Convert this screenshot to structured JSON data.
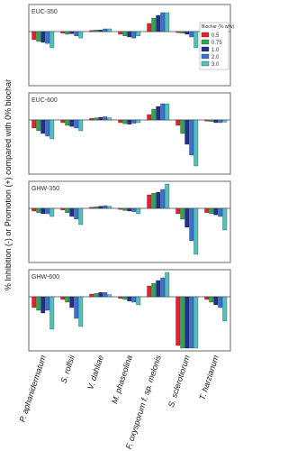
{
  "chart_data": [
    {
      "type": "bar",
      "title": "EUC-350",
      "y_label": "% Inhibition (-) or Promotion (+) compared with 0% biochar",
      "legend_title": "Biochar (% w/w)",
      "legend": "upper right",
      "ylim": [
        -100,
        50
      ],
      "series": [
        {
          "name": "0.5",
          "color": "#e8202a",
          "values": [
            -15,
            -3,
            2,
            -5,
            15,
            -2,
            1
          ]
        },
        {
          "name": "0.75",
          "color": "#2fa84f",
          "values": [
            -18,
            -5,
            3,
            -8,
            25,
            -3,
            -1
          ]
        },
        {
          "name": "1.0",
          "color": "#1f2f8f",
          "values": [
            -20,
            -4,
            3,
            -10,
            30,
            -5,
            -2
          ]
        },
        {
          "name": "2.0",
          "color": "#3a6fd8",
          "values": [
            -22,
            -8,
            5,
            -12,
            35,
            -10,
            -1
          ]
        },
        {
          "name": "3.0",
          "color": "#4fc3b5",
          "values": [
            -30,
            -12,
            5,
            -8,
            35,
            -30,
            -2
          ]
        }
      ]
    },
    {
      "type": "bar",
      "title": "EUC-600",
      "ylim": [
        -100,
        50
      ],
      "series": [
        {
          "color": "#e8202a",
          "values": [
            -15,
            -5,
            3,
            -5,
            10,
            -10,
            -2
          ]
        },
        {
          "color": "#2fa84f",
          "values": [
            -20,
            -10,
            4,
            -7,
            20,
            -25,
            -3
          ]
        },
        {
          "color": "#1f2f8f",
          "values": [
            -25,
            -12,
            5,
            -8,
            25,
            -45,
            -5
          ]
        },
        {
          "color": "#3a6fd8",
          "values": [
            -30,
            -15,
            6,
            -6,
            30,
            -65,
            -5
          ]
        },
        {
          "color": "#4fc3b5",
          "values": [
            -35,
            -20,
            4,
            -5,
            30,
            -85,
            -4
          ]
        }
      ]
    },
    {
      "type": "bar",
      "title": "GHW-350",
      "ylim": [
        -100,
        50
      ],
      "series": [
        {
          "color": "#e8202a",
          "values": [
            -5,
            -3,
            2,
            -2,
            25,
            -10,
            -8
          ]
        },
        {
          "color": "#2fa84f",
          "values": [
            -8,
            -8,
            3,
            -4,
            28,
            -20,
            -10
          ]
        },
        {
          "color": "#1f2f8f",
          "values": [
            -10,
            -15,
            4,
            -5,
            30,
            -35,
            -12
          ]
        },
        {
          "color": "#3a6fd8",
          "values": [
            -10,
            -20,
            5,
            -6,
            35,
            -60,
            -15
          ]
        },
        {
          "color": "#4fc3b5",
          "values": [
            -15,
            -30,
            4,
            -10,
            45,
            -85,
            -40
          ]
        }
      ]
    },
    {
      "type": "bar",
      "title": "GHW-600",
      "ylim": [
        -100,
        50
      ],
      "categories": [
        "P. aphanidermatum",
        "S. rolfsii",
        "V. dahliae",
        "M. phaseolina",
        "F. oxysporum f. sp. melonis",
        "S. sclerotiorum",
        "T. harzianum"
      ],
      "series": [
        {
          "color": "#e8202a",
          "values": [
            -20,
            -5,
            5,
            -3,
            20,
            -90,
            -5
          ]
        },
        {
          "color": "#2fa84f",
          "values": [
            -25,
            -10,
            6,
            -5,
            25,
            -95,
            -10
          ]
        },
        {
          "color": "#1f2f8f",
          "values": [
            -30,
            -20,
            8,
            -8,
            30,
            -95,
            -15
          ]
        },
        {
          "color": "#3a6fd8",
          "values": [
            -25,
            -40,
            8,
            -10,
            35,
            -95,
            -20
          ]
        },
        {
          "color": "#4fc3b5",
          "values": [
            -60,
            -55,
            4,
            -15,
            45,
            -95,
            -45
          ]
        }
      ]
    }
  ]
}
